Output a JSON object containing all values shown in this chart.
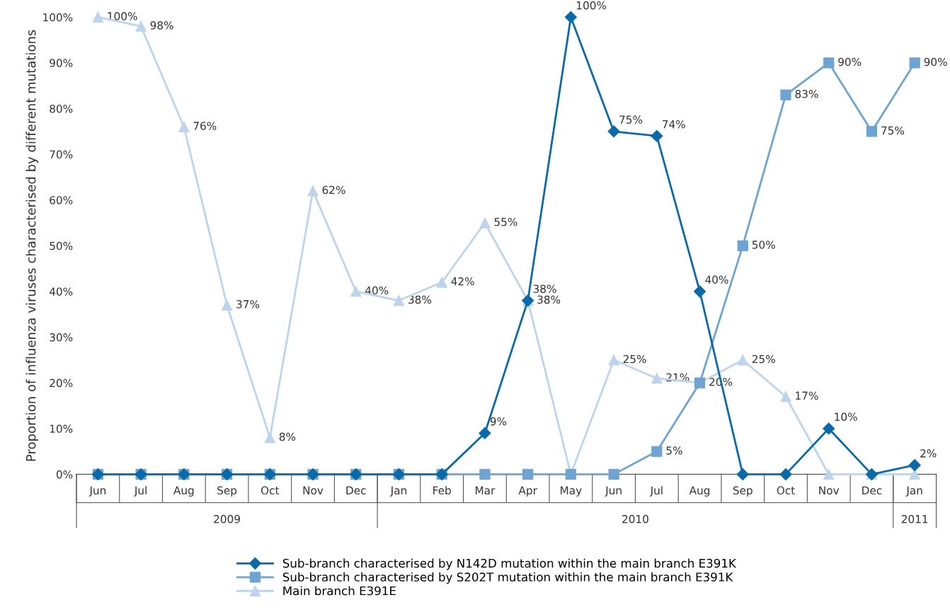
{
  "chart_data": {
    "type": "line",
    "ylabel": "Proportion of influenza viruses characterised by different mutations",
    "x": [
      "2009-06",
      "2009-07",
      "2009-08",
      "2009-09",
      "2009-10",
      "2009-11",
      "2009-12",
      "2010-01",
      "2010-02",
      "2010-03",
      "2010-04",
      "2010-05",
      "2010-06",
      "2010-07",
      "2010-08",
      "2010-09",
      "2010-10",
      "2010-11",
      "2010-12",
      "2011-01"
    ],
    "xlim": [
      "2009-05-16",
      "2011-01-16"
    ],
    "xticks": [
      {
        "value": "2009-06",
        "label": "Jun"
      },
      {
        "value": "2009-07",
        "label": "Jul"
      },
      {
        "value": "2009-08",
        "label": "Aug"
      },
      {
        "value": "2009-09",
        "label": "Sep"
      },
      {
        "value": "2009-10",
        "label": "Oct"
      },
      {
        "value": "2009-11",
        "label": "Nov"
      },
      {
        "value": "2009-12",
        "label": "Dec"
      },
      {
        "value": "2010-01",
        "label": "Jan"
      },
      {
        "value": "2010-02",
        "label": "Feb"
      },
      {
        "value": "2010-03",
        "label": "Mar"
      },
      {
        "value": "2010-04",
        "label": "Apr"
      },
      {
        "value": "2010-05",
        "label": "May"
      },
      {
        "value": "2010-06",
        "label": "Jun"
      },
      {
        "value": "2010-07",
        "label": "Jul"
      },
      {
        "value": "2010-08",
        "label": "Aug"
      },
      {
        "value": "2010-09",
        "label": "Sep"
      },
      {
        "value": "2010-10",
        "label": "Oct"
      },
      {
        "value": "2010-11",
        "label": "Nov"
      },
      {
        "value": "2010-12",
        "label": "Dec"
      },
      {
        "value": "2011-01",
        "label": "Jan"
      }
    ],
    "ylim": [
      0,
      100
    ],
    "yticks": [
      {
        "value": 0,
        "label": "0%"
      },
      {
        "value": 10,
        "label": "10%"
      },
      {
        "value": 20,
        "label": "20%"
      },
      {
        "value": 30,
        "label": "30%"
      },
      {
        "value": 40,
        "label": "40%"
      },
      {
        "value": 50,
        "label": "50%"
      },
      {
        "value": 60,
        "label": "60%"
      },
      {
        "value": 70,
        "label": "70%"
      },
      {
        "value": 80,
        "label": "80%"
      },
      {
        "value": 90,
        "label": "90%"
      },
      {
        "value": 100,
        "label": "100%"
      }
    ],
    "annotations": [
      "2009",
      "2010",
      "2011"
    ],
    "grid": false,
    "legend": "bottom",
    "line_style": "solid",
    "series": [
      {
        "name": "Sub-branch characterised by N142D mutation within the main branch E391K",
        "color": "#0a6aa8",
        "marker": "diamond",
        "values": [
          0,
          0,
          0,
          0,
          0,
          0,
          0,
          0,
          0,
          9,
          38,
          100,
          75,
          74,
          40,
          0,
          0,
          10,
          0,
          2
        ],
        "value_labels": [
          null,
          null,
          null,
          null,
          null,
          null,
          null,
          null,
          null,
          "9%",
          "38%",
          "100%",
          "75%",
          "74%",
          "40%",
          null,
          null,
          "10%",
          null,
          "2%"
        ]
      },
      {
        "name": "Sub-branch characterised by S202T mutation within the main branch E391K",
        "color": "#6ea3d2",
        "marker": "square",
        "values": [
          0,
          0,
          0,
          0,
          0,
          0,
          0,
          0,
          0,
          0,
          0,
          0,
          0,
          5,
          20,
          50,
          83,
          90,
          75,
          90
        ],
        "value_labels": [
          null,
          null,
          null,
          null,
          null,
          null,
          null,
          null,
          null,
          null,
          null,
          null,
          null,
          "5%",
          null,
          "50%",
          "83%",
          "90%",
          "75%",
          "90%"
        ]
      },
      {
        "name": "Main branch E391E",
        "color": "#bdd4eb",
        "marker": "triangle",
        "values": [
          100,
          98,
          76,
          37,
          8,
          62,
          40,
          38,
          42,
          55,
          38,
          0,
          25,
          21,
          20,
          25,
          17,
          0,
          0,
          0
        ],
        "value_labels": [
          "100%",
          "98%",
          "76%",
          "37%",
          "8%",
          "62%",
          "40%",
          "38%",
          "42%",
          "55%",
          "38%",
          null,
          "25%",
          "21%",
          "20%",
          "25%",
          "17%",
          null,
          null,
          null
        ]
      }
    ]
  }
}
